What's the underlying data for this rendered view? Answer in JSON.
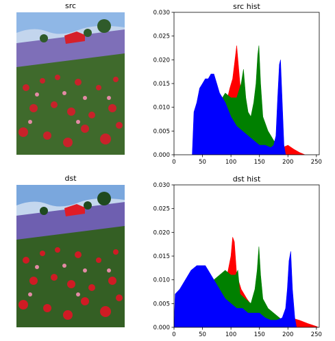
{
  "titles": {
    "src_image": "src",
    "dst_image": "dst",
    "src_hist": "src hist",
    "dst_hist": "dst hist"
  },
  "colors": {
    "red": "#ff0000",
    "green": "#008000",
    "blue": "#0000ff",
    "sky": "#8fb7e6",
    "lavender": "#7e6fb8",
    "field": "#3f6a2c",
    "flower": "#c8222a",
    "roof": "#d6202a",
    "tree": "#2f5b2a"
  },
  "chart_data": [
    {
      "id": "src_hist",
      "type": "area",
      "title": "src hist",
      "xlim": [
        0,
        255
      ],
      "ylim": [
        0,
        0.03
      ],
      "xticks": [
        0,
        50,
        100,
        150,
        200,
        250
      ],
      "yticks": [
        0.0,
        0.005,
        0.01,
        0.015,
        0.02,
        0.025,
        0.03
      ],
      "ytick_labels": [
        "0.000",
        "0.005",
        "0.010",
        "0.015",
        "0.020",
        "0.025",
        "0.030"
      ],
      "series": [
        {
          "color": "#ff0000",
          "points": [
            [
              70,
              0
            ],
            [
              80,
              0.004
            ],
            [
              90,
              0.01
            ],
            [
              98,
              0.014
            ],
            [
              103,
              0.016
            ],
            [
              107,
              0.02
            ],
            [
              110,
              0.023
            ],
            [
              113,
              0.019
            ],
            [
              118,
              0.012
            ],
            [
              125,
              0.008
            ],
            [
              135,
              0.005
            ],
            [
              145,
              0.004
            ],
            [
              160,
              0.003
            ],
            [
              175,
              0.002
            ],
            [
              190,
              0.0015
            ],
            [
              200,
              0.002
            ],
            [
              210,
              0.0012
            ],
            [
              220,
              0.0005
            ],
            [
              230,
              0
            ]
          ]
        },
        {
          "color": "#008000",
          "points": [
            [
              60,
              0
            ],
            [
              70,
              0.006
            ],
            [
              80,
              0.011
            ],
            [
              90,
              0.013
            ],
            [
              100,
              0.012
            ],
            [
              110,
              0.012
            ],
            [
              118,
              0.015
            ],
            [
              122,
              0.018
            ],
            [
              126,
              0.012
            ],
            [
              130,
              0.009
            ],
            [
              135,
              0.008
            ],
            [
              140,
              0.011
            ],
            [
              144,
              0.015
            ],
            [
              147,
              0.021
            ],
            [
              149,
              0.023
            ],
            [
              152,
              0.015
            ],
            [
              156,
              0.008
            ],
            [
              165,
              0.005
            ],
            [
              175,
              0.003
            ],
            [
              185,
              0.0015
            ],
            [
              195,
              0
            ]
          ]
        },
        {
          "color": "#0000ff",
          "points": [
            [
              32,
              0
            ],
            [
              35,
              0.009
            ],
            [
              40,
              0.011
            ],
            [
              45,
              0.014
            ],
            [
              50,
              0.015
            ],
            [
              55,
              0.016
            ],
            [
              60,
              0.016
            ],
            [
              65,
              0.017
            ],
            [
              70,
              0.017
            ],
            [
              75,
              0.015
            ],
            [
              80,
              0.013
            ],
            [
              90,
              0.011
            ],
            [
              100,
              0.008
            ],
            [
              110,
              0.006
            ],
            [
              120,
              0.005
            ],
            [
              130,
              0.004
            ],
            [
              140,
              0.003
            ],
            [
              150,
              0.002
            ],
            [
              160,
              0.002
            ],
            [
              170,
              0.0015
            ],
            [
              175,
              0.002
            ],
            [
              179,
              0.004
            ],
            [
              182,
              0.012
            ],
            [
              185,
              0.019
            ],
            [
              187,
              0.02
            ],
            [
              190,
              0.011
            ],
            [
              193,
              0.002
            ],
            [
              196,
              0
            ]
          ]
        }
      ]
    },
    {
      "id": "dst_hist",
      "type": "area",
      "title": "dst hist",
      "xlim": [
        0,
        255
      ],
      "ylim": [
        0,
        0.03
      ],
      "xticks": [
        0,
        50,
        100,
        150,
        200,
        250
      ],
      "yticks": [
        0.0,
        0.005,
        0.01,
        0.015,
        0.02,
        0.025,
        0.03
      ],
      "ytick_labels": [
        "0.000",
        "0.005",
        "0.010",
        "0.015",
        "0.020",
        "0.025",
        "0.030"
      ],
      "series": [
        {
          "color": "#ff0000",
          "points": [
            [
              70,
              0
            ],
            [
              80,
              0.004
            ],
            [
              90,
              0.009
            ],
            [
              95,
              0.012
            ],
            [
              100,
              0.015
            ],
            [
              103,
              0.019
            ],
            [
              106,
              0.018
            ],
            [
              110,
              0.011
            ],
            [
              118,
              0.008
            ],
            [
              128,
              0.006
            ],
            [
              140,
              0.004
            ],
            [
              155,
              0.003
            ],
            [
              170,
              0.002
            ],
            [
              190,
              0.0015
            ],
            [
              205,
              0.002
            ],
            [
              220,
              0.0015
            ],
            [
              235,
              0.0008
            ],
            [
              250,
              0.0002
            ],
            [
              253,
              0
            ]
          ]
        },
        {
          "color": "#008000",
          "points": [
            [
              50,
              0
            ],
            [
              60,
              0.007
            ],
            [
              70,
              0.01
            ],
            [
              80,
              0.011
            ],
            [
              90,
              0.012
            ],
            [
              100,
              0.011
            ],
            [
              108,
              0.011
            ],
            [
              112,
              0.012
            ],
            [
              116,
              0.007
            ],
            [
              125,
              0.006
            ],
            [
              135,
              0.005
            ],
            [
              142,
              0.008
            ],
            [
              146,
              0.012
            ],
            [
              149,
              0.017
            ],
            [
              152,
              0.011
            ],
            [
              156,
              0.006
            ],
            [
              165,
              0.004
            ],
            [
              175,
              0.003
            ],
            [
              185,
              0.002
            ],
            [
              195,
              0.001
            ],
            [
              205,
              0
            ]
          ]
        },
        {
          "color": "#0000ff",
          "points": [
            [
              0,
              0
            ],
            [
              2,
              0.007
            ],
            [
              10,
              0.008
            ],
            [
              20,
              0.01
            ],
            [
              30,
              0.012
            ],
            [
              40,
              0.013
            ],
            [
              50,
              0.013
            ],
            [
              55,
              0.013
            ],
            [
              60,
              0.012
            ],
            [
              70,
              0.01
            ],
            [
              80,
              0.008
            ],
            [
              90,
              0.006
            ],
            [
              100,
              0.005
            ],
            [
              110,
              0.004
            ],
            [
              120,
              0.004
            ],
            [
              130,
              0.003
            ],
            [
              140,
              0.003
            ],
            [
              150,
              0.003
            ],
            [
              160,
              0.002
            ],
            [
              170,
              0.0015
            ],
            [
              180,
              0.0015
            ],
            [
              190,
              0.002
            ],
            [
              196,
              0.004
            ],
            [
              199,
              0.008
            ],
            [
              202,
              0.014
            ],
            [
              205,
              0.016
            ],
            [
              208,
              0.008
            ],
            [
              212,
              0.002
            ],
            [
              215,
              0
            ]
          ]
        }
      ]
    }
  ]
}
